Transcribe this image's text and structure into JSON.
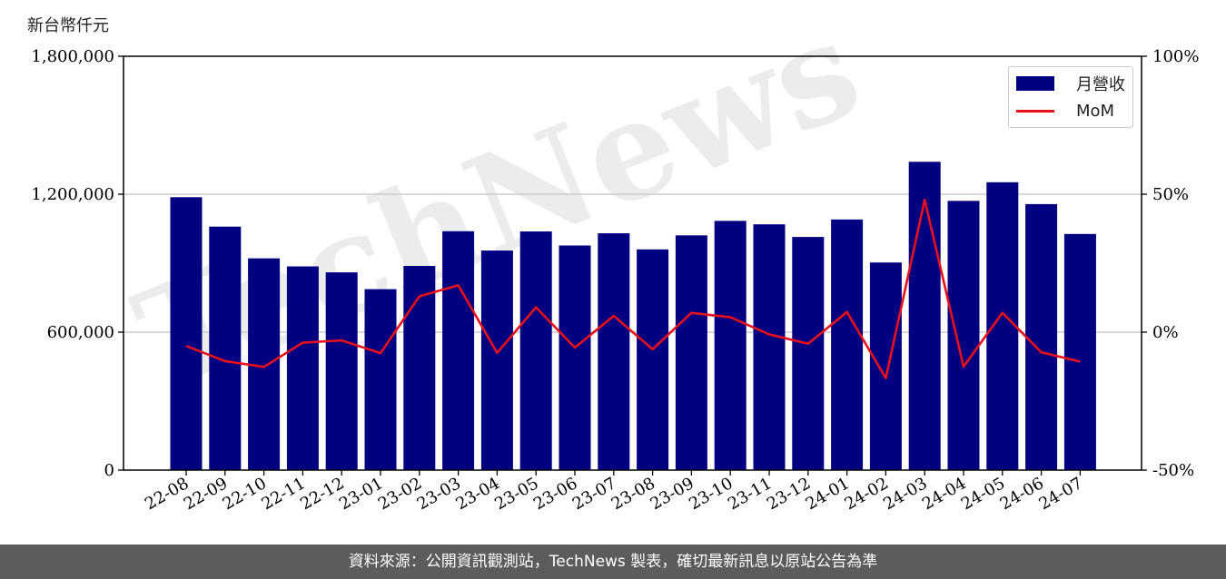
{
  "unit_label": "新台幣仟元",
  "footer_text": "資料來源：公開資訊觀測站，TechNews 製表，確切最新訊息以原站公告為準",
  "watermark_text": "TechNews",
  "colors": {
    "bar": "#000080",
    "line": "#e8101a",
    "grid": "#cccccc",
    "footer_bg": "#5c5c5c"
  },
  "chart_data": {
    "type": "bar",
    "categories": [
      "22-08",
      "22-09",
      "22-10",
      "22-11",
      "22-12",
      "23-01",
      "23-02",
      "23-03",
      "23-04",
      "23-05",
      "23-06",
      "23-07",
      "23-08",
      "23-09",
      "23-10",
      "23-11",
      "23-12",
      "24-01",
      "24-02",
      "24-03",
      "24-04",
      "24-05",
      "24-06",
      "24-07"
    ],
    "series": [
      {
        "name": "月營收",
        "type": "bar",
        "axis": "left",
        "values": [
          1187000,
          1059000,
          921000,
          886000,
          860000,
          787000,
          888000,
          1039000,
          955000,
          1038000,
          977000,
          1030000,
          960000,
          1021000,
          1084000,
          1069000,
          1014000,
          1090000,
          903000,
          1341000,
          1171000,
          1252000,
          1157000,
          1027000
        ]
      },
      {
        "name": "MoM",
        "type": "line",
        "axis": "right",
        "values": [
          -5,
          -10.5,
          -12.6,
          -3.8,
          -3.0,
          -7.6,
          13.0,
          17.0,
          -7.5,
          9.0,
          -5.6,
          5.9,
          -6.2,
          7.0,
          5.4,
          -0.8,
          -4.2,
          7.3,
          -16.7,
          48.0,
          -12.5,
          7.0,
          -7.3,
          -10.7
        ]
      }
    ],
    "left_axis": {
      "ylim": [
        0,
        1800000
      ],
      "ticks": [
        "0",
        "600,000",
        "1,200,000",
        "1,800,000"
      ],
      "tick_values": [
        0,
        600000,
        1200000,
        1800000
      ]
    },
    "right_axis": {
      "ylim": [
        -50,
        100
      ],
      "ticks": [
        "-50%",
        "0%",
        "50%",
        "100%"
      ],
      "tick_values": [
        -50,
        0,
        50,
        100
      ]
    },
    "grid": "horizontal",
    "legend_position": "top-right"
  }
}
